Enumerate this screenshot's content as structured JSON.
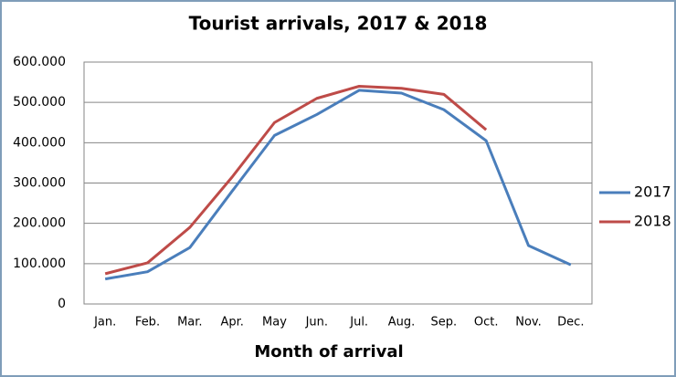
{
  "chart_data": {
    "type": "line",
    "title": "Tourist arrivals, 2017 & 2018",
    "x_label": "Month of arrival",
    "categories": [
      "Jan.",
      "Feb.",
      "Mar.",
      "Apr.",
      "May",
      "Jun.",
      "Jul.",
      "Aug.",
      "Sep.",
      "Oct.",
      "Nov.",
      "Dec."
    ],
    "series": [
      {
        "name": "2017",
        "color": "#4a7ebb",
        "values": [
          62000,
          80000,
          140000,
          280000,
          418000,
          470000,
          530000,
          523000,
          482000,
          405000,
          145000,
          97000
        ]
      },
      {
        "name": "2018",
        "color": "#be4b48",
        "values": [
          75000,
          102000,
          190000,
          315000,
          450000,
          510000,
          540000,
          535000,
          520000,
          432000,
          null,
          null
        ]
      }
    ],
    "ylim": [
      0,
      600000
    ],
    "yticks": [
      0,
      {
        "value": 100000,
        "label": "100.000"
      },
      {
        "value": 200000,
        "label": "200.000"
      },
      {
        "value": 300000,
        "label": "300.000"
      },
      {
        "value": 400000,
        "label": "400.000"
      },
      {
        "value": 500000,
        "label": "500.000"
      },
      {
        "value": 600000,
        "label": "600.000"
      }
    ],
    "grid": true,
    "legend": "right"
  }
}
